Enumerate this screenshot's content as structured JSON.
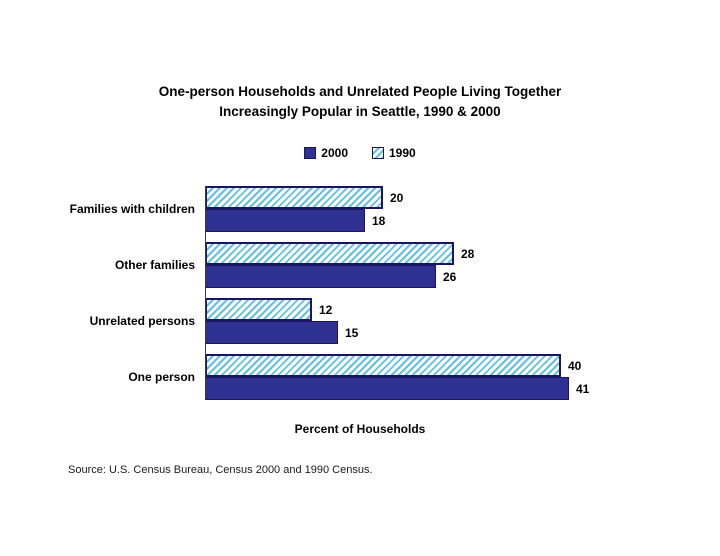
{
  "title_line1": "One-person Households and Unrelated People Living Together",
  "title_line2": "Increasingly Popular in Seattle, 1990 & 2000",
  "source": "Source: U.S. Census Bureau, Census 2000 and 1990 Census.",
  "colors": {
    "solid_2000": "#2E3192",
    "hatch_1990": "#5FC0E8",
    "bar_border": "#1B1464"
  },
  "chart_data": {
    "type": "bar",
    "orientation": "horizontal",
    "title": "One-person Households and Unrelated People Living Together Increasingly Popular in Seattle, 1990 & 2000",
    "xlabel": "Percent of Households",
    "categories": [
      "Families with children",
      "Other families",
      "Unrelated persons",
      "One person"
    ],
    "series": [
      {
        "name": "2000",
        "style": "solid",
        "values": [
          18,
          26,
          15,
          41
        ]
      },
      {
        "name": "1990",
        "style": "hatched",
        "values": [
          20,
          28,
          12,
          40
        ]
      }
    ],
    "xlim": [
      0,
      45
    ],
    "grid": false,
    "legend_position": "top",
    "bar_order_within_group": [
      "1990",
      "2000"
    ]
  }
}
